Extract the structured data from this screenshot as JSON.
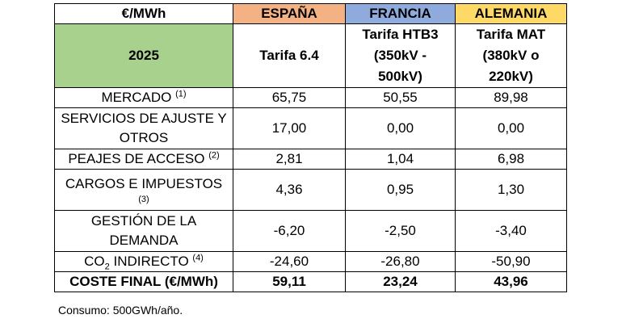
{
  "colors": {
    "header_label_bg": "#ffffff",
    "year_bg": "#a9d18e",
    "espana_bg": "#f4b183",
    "francia_bg": "#8faadc",
    "alemania_bg": "#ffd966",
    "border": "#000000"
  },
  "table": {
    "corner": "€/MWh",
    "year": "2025",
    "countries": [
      {
        "name": "ESPAÑA",
        "tariff": [
          "Tarifa 6.4"
        ]
      },
      {
        "name": "FRANCIA",
        "tariff": [
          "Tarifa HTB3",
          "(350kV -",
          "500kV)"
        ]
      },
      {
        "name": "ALEMANIA",
        "tariff": [
          "Tarifa MAT",
          "(380kV o",
          "220kV)"
        ]
      }
    ],
    "rows": [
      {
        "label": "MERCADO",
        "note": "(1)",
        "values": [
          "65,75",
          "50,55",
          "89,98"
        ]
      },
      {
        "label_lines": [
          "SERVICIOS DE AJUSTE Y",
          "OTROS"
        ],
        "values": [
          "17,00",
          "0,00",
          "0,00"
        ]
      },
      {
        "label": "PEAJES DE ACCESO",
        "note": "(2)",
        "values": [
          "2,81",
          "1,04",
          "6,98"
        ]
      },
      {
        "label": "CARGOS E IMPUESTOS",
        "note": "(3)",
        "values": [
          "4,36",
          "0,95",
          "1,30"
        ]
      },
      {
        "label_lines": [
          "GESTIÓN DE LA",
          "DEMANDA"
        ],
        "values": [
          "-6,20",
          "-2,50",
          "-3,40"
        ]
      },
      {
        "label_pre": "CO",
        "label_sub": "2",
        "label_post": " INDIRECTO",
        "note": "(4)",
        "values": [
          "-24,60",
          "-26,80",
          "-50,90"
        ]
      }
    ],
    "total": {
      "label": "COSTE FINAL (€/MWh)",
      "values": [
        "59,11",
        "23,24",
        "43,96"
      ]
    }
  },
  "footnote": "Consumo: 500GWh/año."
}
